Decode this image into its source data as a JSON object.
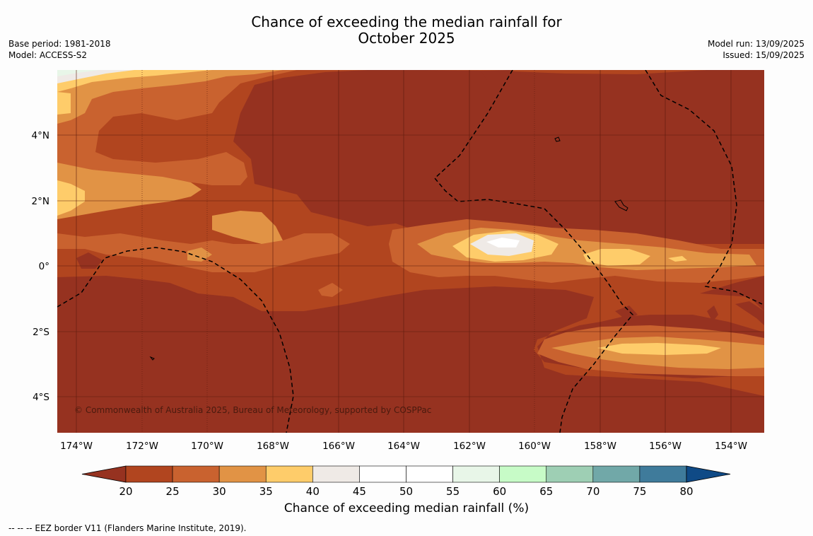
{
  "title_line1": "Chance of exceeding the median rainfall for",
  "title_line2": "October 2025",
  "meta_left": [
    "Base period: 1981-2018",
    "Model: ACCESS-S2"
  ],
  "meta_right": [
    "Model run: 13/09/2025",
    "Issued: 15/09/2025"
  ],
  "copyright": "© Commonwealth of Australia 2025, Bureau of Meteorology, supported by COSPPac",
  "x_ticks": [
    "174°W",
    "172°W",
    "170°W",
    "168°W",
    "166°W",
    "164°W",
    "162°W",
    "160°W",
    "158°W",
    "156°W",
    "154°W"
  ],
  "y_ticks": [
    "4°N",
    "2°N",
    "0°",
    "2°S",
    "4°S"
  ],
  "colorbar": {
    "title": "Chance of exceeding median rainfall (%)",
    "ticks": [
      "20",
      "25",
      "30",
      "35",
      "40",
      "45",
      "50",
      "55",
      "60",
      "65",
      "70",
      "75",
      "80"
    ],
    "colors": [
      "#b1451f",
      "#c9622f",
      "#e19345",
      "#fecc6a",
      "#efeae6",
      "#ffffff",
      "#ffffff",
      "#e8f6e8",
      "#c7fbc7",
      "#9ecfb4",
      "#71a8a8",
      "#3f7b9b"
    ],
    "under_color": "#963220",
    "over_color": "#0f4a86"
  },
  "footer": "--  --  -- EEZ border V11 (Flanders Marine Institute, 2019).",
  "colors": {
    "c20": "#963220",
    "c25": "#b1451f",
    "c30": "#c9622f",
    "c35": "#e19345",
    "c40": "#fecc6a",
    "c45": "#efeae6",
    "c50": "#ffffff",
    "c60": "#e8f6e8"
  }
}
